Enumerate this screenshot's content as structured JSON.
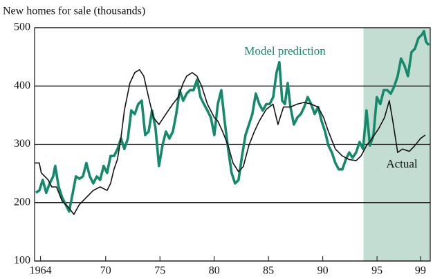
{
  "chart_data": {
    "type": "line",
    "y_label": "New homes for sale (thousands)",
    "xlim": [
      1963.45,
      1999.9
    ],
    "ylim": [
      100,
      500
    ],
    "xticks": [
      1964,
      {
        "value": 1970,
        "label": "70"
      },
      {
        "value": 1975,
        "label": "75"
      },
      {
        "value": 1980,
        "label": "80"
      },
      {
        "value": 1985,
        "label": "85"
      },
      {
        "value": 1990,
        "label": "90"
      },
      {
        "value": 1995,
        "label": "95"
      },
      {
        "value": 1999,
        "label": "99"
      }
    ],
    "yticks": [
      100,
      200,
      300,
      400,
      500
    ],
    "grid": true,
    "shaded_region": {
      "x": [
        1993.75,
        1999.9
      ],
      "color": "#c3ddd2"
    },
    "series": [
      {
        "name": "Model prediction",
        "color": "#14896b",
        "x": [
          1963.57,
          1963.89,
          1964.2,
          1964.52,
          1964.84,
          1965.16,
          1965.35,
          1965.67,
          1965.99,
          1966.31,
          1966.63,
          1966.95,
          1967.26,
          1967.58,
          1967.9,
          1968.22,
          1968.54,
          1968.86,
          1969.18,
          1969.49,
          1969.81,
          1970.13,
          1970.45,
          1970.77,
          1971.09,
          1971.41,
          1971.72,
          1972.04,
          1972.36,
          1972.68,
          1973.0,
          1973.32,
          1973.64,
          1973.96,
          1974.27,
          1974.59,
          1974.91,
          1975.23,
          1975.55,
          1975.87,
          1976.19,
          1976.5,
          1976.82,
          1977.14,
          1977.46,
          1977.78,
          1978.1,
          1978.42,
          1978.73,
          1979.05,
          1979.37,
          1979.69,
          1980.01,
          1980.33,
          1980.65,
          1980.96,
          1981.28,
          1981.6,
          1981.92,
          1982.24,
          1982.56,
          1982.88,
          1983.2,
          1983.51,
          1983.83,
          1984.15,
          1984.47,
          1984.79,
          1985.11,
          1985.43,
          1985.74,
          1986.0,
          1986.26,
          1986.51,
          1986.77,
          1987.02,
          1987.34,
          1987.66,
          1987.98,
          1988.29,
          1988.61,
          1988.93,
          1989.25,
          1989.57,
          1989.89,
          1990.21,
          1990.52,
          1990.84,
          1991.16,
          1991.48,
          1991.8,
          1992.12,
          1992.44,
          1992.75,
          1993.07,
          1993.39,
          1993.71,
          1994.03,
          1994.35,
          1994.67,
          1994.98,
          1995.3,
          1995.62,
          1995.94,
          1996.26,
          1996.58,
          1996.9,
          1997.21,
          1997.53,
          1997.85,
          1998.17,
          1998.49,
          1998.81,
          1999.13,
          1999.32,
          1999.51,
          1999.77
        ],
        "values": [
          217,
          221,
          239,
          217,
          233,
          245,
          263,
          227,
          209,
          197,
          185,
          215,
          245,
          241,
          245,
          268,
          245,
          233,
          245,
          239,
          263,
          251,
          280,
          280,
          292,
          310,
          292,
          310,
          358,
          352,
          369,
          375,
          316,
          322,
          358,
          328,
          263,
          298,
          322,
          310,
          322,
          352,
          393,
          375,
          387,
          393,
          393,
          411,
          381,
          369,
          358,
          346,
          316,
          369,
          393,
          340,
          292,
          251,
          233,
          239,
          280,
          316,
          334,
          352,
          387,
          369,
          358,
          369,
          369,
          381,
          423,
          441,
          375,
          369,
          405,
          364,
          334,
          346,
          352,
          364,
          381,
          369,
          352,
          364,
          340,
          322,
          298,
          286,
          268,
          257,
          257,
          274,
          286,
          277,
          286,
          304,
          292,
          358,
          298,
          316,
          381,
          369,
          393,
          393,
          387,
          399,
          417,
          447,
          435,
          417,
          458,
          464,
          482,
          488,
          494,
          476,
          470
        ]
      },
      {
        "name": "Actual",
        "color": "#111111",
        "x": [
          1963.44,
          1963.88,
          1964.07,
          1964.71,
          1965.03,
          1965.47,
          1965.98,
          1966.62,
          1967.07,
          1967.58,
          1968.22,
          1968.85,
          1969.49,
          1970.13,
          1970.45,
          1970.76,
          1971.08,
          1971.4,
          1971.72,
          1972.23,
          1972.68,
          1973.12,
          1973.51,
          1973.95,
          1974.4,
          1974.91,
          1975.55,
          1976.18,
          1976.69,
          1977.14,
          1977.46,
          1977.97,
          1978.41,
          1978.86,
          1979.37,
          1980.01,
          1980.33,
          1980.77,
          1981.28,
          1981.73,
          1982.24,
          1982.68,
          1983.19,
          1983.7,
          1984.15,
          1984.79,
          1985.42,
          1985.87,
          1986.38,
          1987.02,
          1987.65,
          1988.29,
          1988.93,
          1989.57,
          1990.08,
          1990.52,
          1991.16,
          1991.8,
          1992.43,
          1993.07,
          1993.52,
          1994.03,
          1994.54,
          1995.18,
          1995.69,
          1996.13,
          1996.45,
          1996.9,
          1997.34,
          1997.98,
          1998.49,
          1999.0,
          1999.45
        ],
        "values": [
          268,
          268,
          251,
          239,
          227,
          227,
          203,
          191,
          180,
          197,
          209,
          221,
          227,
          221,
          233,
          257,
          274,
          310,
          358,
          405,
          423,
          428,
          417,
          381,
          346,
          334,
          352,
          369,
          381,
          405,
          417,
          423,
          417,
          399,
          369,
          346,
          340,
          322,
          298,
          268,
          253,
          262,
          298,
          322,
          340,
          360,
          369,
          334,
          364,
          364,
          369,
          372,
          369,
          364,
          346,
          322,
          292,
          280,
          274,
          272,
          280,
          298,
          310,
          328,
          346,
          375,
          340,
          286,
          292,
          288,
          298,
          310,
          316
        ]
      }
    ]
  }
}
